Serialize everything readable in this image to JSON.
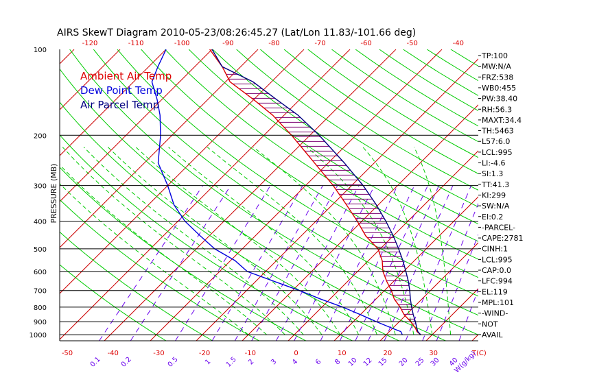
{
  "title": "AIRS SkewT Diagram 2010-05-23/08:26:45.27 (Lat/Lon 11.83/-101.66 deg)",
  "colors": {
    "ambient": "#dd0000",
    "dewpoint": "#0000dd",
    "parcel": "#000080",
    "isotherm": "#cc0000",
    "dry_adiabat": "#00cc00",
    "moist_adiabat": "#00cc00",
    "mixing_ratio": "#6a00ee",
    "isobar": "#000000",
    "hatch": "#7a0070"
  },
  "chart_data": {
    "type": "line",
    "title": "AIRS SkewT Diagram 2010-05-23/08:26:45.27 (Lat/Lon 11.83/-101.66 deg)",
    "ylabel": "PRESSURE (MB)",
    "y_scale": "log",
    "ylim": [
      1050,
      100
    ],
    "pressure_ticks": [
      100,
      200,
      300,
      400,
      500,
      600,
      700,
      800,
      900,
      1000
    ],
    "isobars": [
      200,
      300,
      400,
      500,
      600,
      700,
      800,
      900,
      1000
    ],
    "bottom_temp_ticks": [
      "-50",
      "-40",
      "-30",
      "-20",
      "-10",
      "0",
      "10",
      "20",
      "30",
      "T(C)"
    ],
    "top_temp_ticks": [
      "-120",
      "-110",
      "-100",
      "-90",
      "-80",
      "-70",
      "-60",
      "-50",
      "-40"
    ],
    "mixing_ratio_ticks": [
      "0.1",
      "0.2",
      "0.5",
      "1",
      "1.5",
      "2",
      "3",
      "4",
      "6",
      "8",
      "10",
      "12",
      "15",
      "20",
      "25",
      "30",
      "40",
      "W(g/kg)"
    ],
    "skew": "temperature lines skewed ~45 deg",
    "legend": [
      "Ambient Air Temp",
      "Dew Point Temp",
      "Air Parcel Temp"
    ],
    "legend_position": "top-left",
    "series": [
      {
        "name": "Ambient Air Temp",
        "points": [
          [
            1000,
            27.5
          ],
          [
            975,
            26.0
          ],
          [
            950,
            25.0
          ],
          [
            900,
            22.5
          ],
          [
            850,
            19.5
          ],
          [
            800,
            17.0
          ],
          [
            750,
            14.0
          ],
          [
            700,
            11.5
          ],
          [
            650,
            8.5
          ],
          [
            600,
            5.5
          ],
          [
            550,
            3.0
          ],
          [
            500,
            -0.5
          ],
          [
            450,
            -6.0
          ],
          [
            400,
            -11.0
          ],
          [
            350,
            -17.0
          ],
          [
            300,
            -24.0
          ],
          [
            250,
            -33.0
          ],
          [
            200,
            -44.0
          ],
          [
            170,
            -52.5
          ],
          [
            150,
            -60.0
          ],
          [
            130,
            -69.0
          ],
          [
            115,
            -74.0
          ],
          [
            100,
            -80.5
          ]
        ]
      },
      {
        "name": "Dew Point Temp",
        "points": [
          [
            1000,
            23.5
          ],
          [
            975,
            22.5
          ],
          [
            950,
            20.0
          ],
          [
            900,
            15.0
          ],
          [
            850,
            10.0
          ],
          [
            800,
            4.5
          ],
          [
            750,
            -2.0
          ],
          [
            700,
            -8.5
          ],
          [
            650,
            -16.0
          ],
          [
            600,
            -24.0
          ],
          [
            550,
            -29.0
          ],
          [
            500,
            -36.0
          ],
          [
            450,
            -42.0
          ],
          [
            400,
            -48.5
          ],
          [
            350,
            -54.5
          ],
          [
            300,
            -60.0
          ],
          [
            250,
            -67.0
          ],
          [
            200,
            -72.5
          ],
          [
            170,
            -77.0
          ],
          [
            150,
            -81.0
          ],
          [
            130,
            -86.0
          ],
          [
            115,
            -88.0
          ],
          [
            100,
            -90.0
          ]
        ]
      },
      {
        "name": "Air Parcel Temp",
        "points": [
          [
            1000,
            27.5
          ],
          [
            975,
            26.2
          ],
          [
            950,
            25.3
          ],
          [
            900,
            23.5
          ],
          [
            850,
            21.5
          ],
          [
            800,
            19.5
          ],
          [
            750,
            17.5
          ],
          [
            700,
            15.5
          ],
          [
            650,
            13.2
          ],
          [
            600,
            10.5
          ],
          [
            550,
            7.5
          ],
          [
            500,
            4.0
          ],
          [
            450,
            0.0
          ],
          [
            400,
            -4.8
          ],
          [
            350,
            -10.5
          ],
          [
            300,
            -17.5
          ],
          [
            250,
            -26.5
          ],
          [
            200,
            -38.0
          ],
          [
            170,
            -47.0
          ],
          [
            150,
            -55.0
          ],
          [
            130,
            -64.0
          ],
          [
            115,
            -74.0
          ],
          [
            100,
            -80.0
          ]
        ]
      }
    ]
  },
  "indices": [
    "TP:100",
    "MW:N/A",
    "FRZ:538",
    "WB0:455",
    "PW:38.40",
    "RH:56.3",
    "MAXT:34.4",
    "TH:5463",
    "L57:6.0",
    "LCL:995",
    "LI:-4.6",
    "SI:1.3",
    "TT:41.3",
    "KI:299",
    "SW:N/A",
    "EI:0.2",
    "-PARCEL-",
    "CAPE:2781",
    "CINH:1",
    "LCL:995",
    "CAP:0.0",
    "LFC:994",
    "EL:119",
    "MPL:101",
    "-WIND-",
    "NOT",
    "AVAIL"
  ]
}
